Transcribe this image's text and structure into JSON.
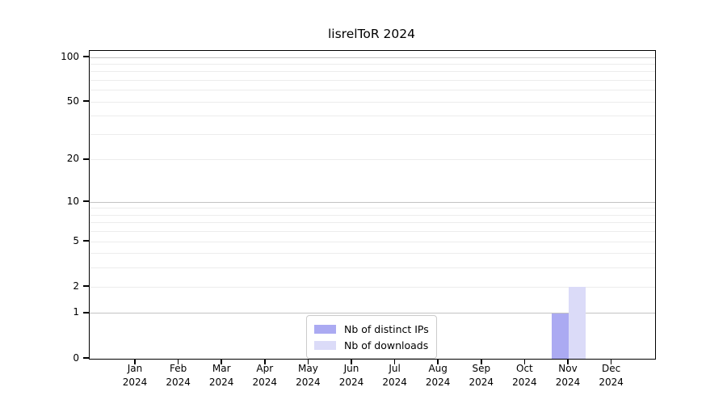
{
  "chart_data": {
    "type": "bar",
    "title": "lisrelToR 2024",
    "categories": [
      "Jan 2024",
      "Feb 2024",
      "Mar 2024",
      "Apr 2024",
      "May 2024",
      "Jun 2024",
      "Jul 2024",
      "Aug 2024",
      "Sep 2024",
      "Oct 2024",
      "Nov 2024",
      "Dec 2024"
    ],
    "series": [
      {
        "name": "Nb of distinct IPs",
        "color": "#abaaf2",
        "values": [
          0,
          0,
          0,
          0,
          0,
          0,
          0,
          0,
          0,
          0,
          1,
          0
        ]
      },
      {
        "name": "Nb of downloads",
        "color": "#dbdbf8",
        "values": [
          0,
          0,
          0,
          0,
          0,
          0,
          0,
          0,
          0,
          0,
          2,
          0
        ]
      }
    ],
    "xlabel": "",
    "ylabel": "",
    "y_scale": "log1p",
    "ylim": [
      0,
      111
    ],
    "y_tick_labels": [
      0,
      1,
      2,
      5,
      10,
      20,
      50,
      100
    ],
    "y_major_gridlines": [
      1,
      10,
      100
    ],
    "y_minor_gridlines": [
      2,
      3,
      4,
      5,
      6,
      7,
      8,
      9,
      20,
      30,
      40,
      50,
      60,
      70,
      80,
      90
    ],
    "grid": true,
    "legend": {
      "position": "bottom-center",
      "entries": [
        "Nb of distinct IPs",
        "Nb of downloads"
      ]
    },
    "colors": {
      "axis": "#000000",
      "major_grid": "#c3c3c3",
      "minor_grid": "#ececec",
      "background": "#ffffff"
    }
  }
}
